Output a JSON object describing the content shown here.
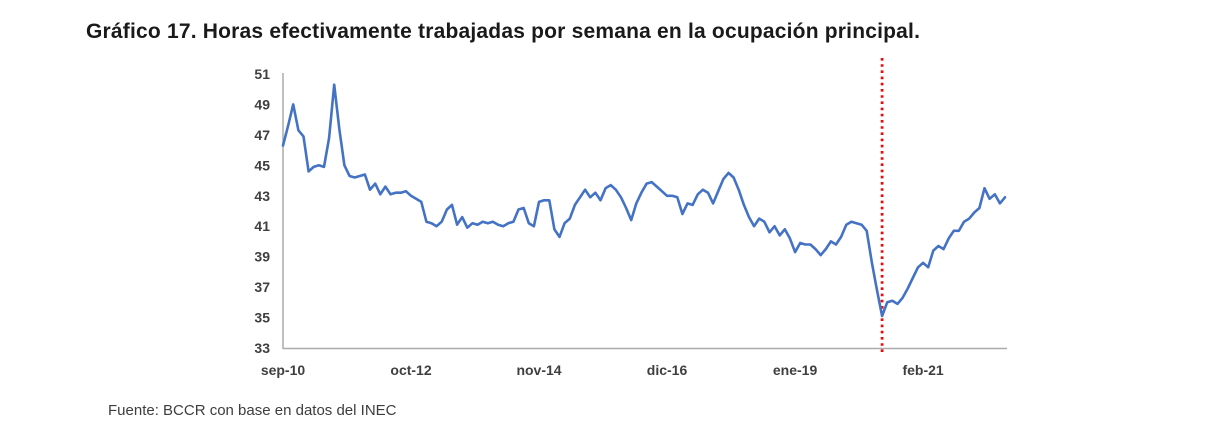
{
  "figure": {
    "title": "Gráfico 17. Horas efectivamente trabajadas por semana en la ocupación principal.",
    "source_note": "Fuente: BCCR con base en datos del INEC"
  },
  "colors": {
    "series_line": "#4472C4",
    "event_line_red": "#E01010",
    "axis_line": "#ABABAB",
    "tick_label": "#3F3F3F",
    "title_text": "#1A1A1A",
    "source_text": "#3D3D3D",
    "background": "#FFFFFF"
  },
  "chart_data": {
    "type": "line",
    "title": "Gráfico 17. Horas efectivamente trabajadas por semana en la ocupación principal.",
    "xlabel": "",
    "ylabel": "",
    "grid": false,
    "legend": "none",
    "ylim": [
      33,
      51
    ],
    "yticks": [
      51,
      49,
      47,
      45,
      43,
      41,
      39,
      37,
      35,
      33
    ],
    "x_frequency": "monthly",
    "x_start": "sep-10",
    "x_end": "jun-22",
    "xticks": [
      {
        "index": 0,
        "label": "sep-10"
      },
      {
        "index": 25,
        "label": "oct-12"
      },
      {
        "index": 50,
        "label": "nov-14"
      },
      {
        "index": 75,
        "label": "dic-16"
      },
      {
        "index": 100,
        "label": "ene-19"
      },
      {
        "index": 125,
        "label": "feb-21"
      }
    ],
    "series": [
      {
        "name": "Horas efectivamente trabajadas por semana en la ocupación principal",
        "color": "#4472C4",
        "values": [
          46.3,
          47.6,
          49.0,
          47.3,
          46.9,
          44.6,
          44.9,
          45.0,
          44.9,
          46.8,
          50.3,
          47.4,
          45.0,
          44.3,
          44.2,
          44.3,
          44.4,
          43.4,
          43.8,
          43.1,
          43.6,
          43.1,
          43.2,
          43.2,
          43.3,
          43.0,
          42.8,
          42.6,
          41.3,
          41.2,
          41.0,
          41.3,
          42.1,
          42.4,
          41.1,
          41.6,
          40.9,
          41.2,
          41.1,
          41.3,
          41.2,
          41.3,
          41.1,
          41.0,
          41.2,
          41.3,
          42.1,
          42.2,
          41.2,
          41.0,
          42.6,
          42.7,
          42.7,
          40.8,
          40.3,
          41.2,
          41.5,
          42.4,
          42.9,
          43.4,
          42.9,
          43.2,
          42.7,
          43.5,
          43.7,
          43.4,
          42.9,
          42.2,
          41.4,
          42.5,
          43.2,
          43.8,
          43.9,
          43.6,
          43.3,
          43.0,
          43.0,
          42.9,
          41.8,
          42.5,
          42.4,
          43.1,
          43.4,
          43.2,
          42.5,
          43.3,
          44.1,
          44.5,
          44.2,
          43.4,
          42.4,
          41.6,
          41.0,
          41.5,
          41.3,
          40.6,
          41.0,
          40.4,
          40.8,
          40.2,
          39.3,
          39.9,
          39.8,
          39.8,
          39.5,
          39.1,
          39.5,
          40.0,
          39.8,
          40.3,
          41.1,
          41.3,
          41.2,
          41.1,
          40.7,
          38.6,
          36.8,
          35.1,
          36.0,
          36.1,
          35.9,
          36.3,
          36.9,
          37.6,
          38.3,
          38.6,
          38.3,
          39.4,
          39.7,
          39.5,
          40.2,
          40.7,
          40.7,
          41.3,
          41.5,
          41.9,
          42.2,
          43.5,
          42.8,
          43.1,
          42.5,
          42.9
        ]
      }
    ],
    "event_line": {
      "style": "dotted",
      "color": "#E01010",
      "x_index": 117,
      "x_month": "jun-20"
    },
    "source": "Fuente: BCCR con base en datos del INEC"
  }
}
